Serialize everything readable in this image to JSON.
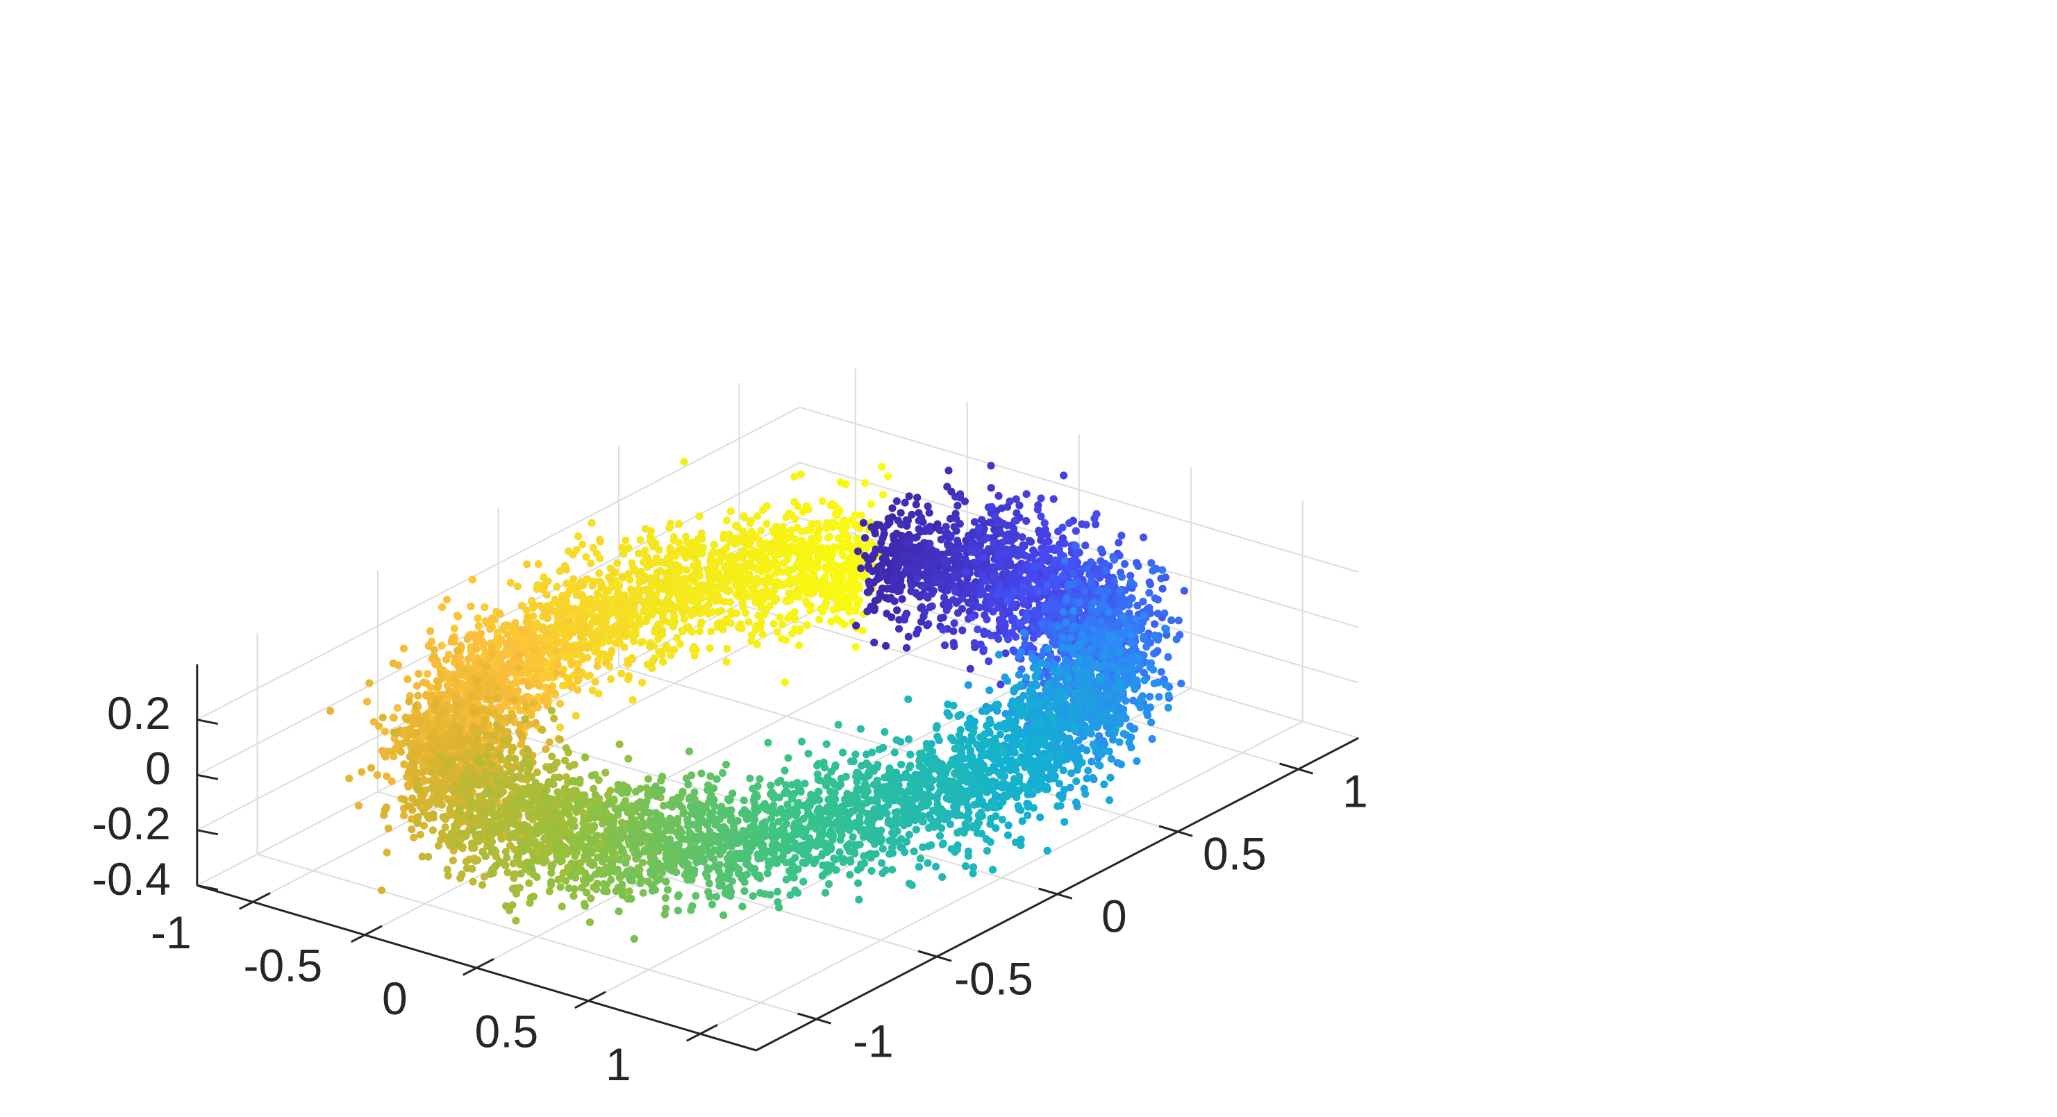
{
  "chart_data": {
    "type": "scatter",
    "projection": "3d",
    "title": "",
    "xlabel": "",
    "ylabel": "",
    "zlabel": "",
    "xlim": [
      -1.25,
      1.25
    ],
    "ylim": [
      -1.25,
      1.25
    ],
    "zlim": [
      -0.4,
      0.4
    ],
    "x_ticks": [
      -1,
      -0.5,
      0,
      0.5,
      1
    ],
    "y_ticks": [
      -1,
      -0.5,
      0,
      0.5,
      1
    ],
    "z_ticks": [
      -0.4,
      -0.2,
      0,
      0.2
    ],
    "x_tick_labels": [
      "-1",
      "-0.5",
      "0",
      "0.5",
      "1"
    ],
    "y_tick_labels": [
      "-1",
      "-0.5",
      "0",
      "0.5",
      "1"
    ],
    "z_tick_labels": [
      "-0.4",
      "-0.2",
      "0",
      "0.2"
    ],
    "grid": true,
    "legend": "none",
    "colormap": "parula",
    "colormap_stops": [
      "#3e26a8",
      "#4748f1",
      "#2e87f7",
      "#12b2d0",
      "#38c388",
      "#96c03c",
      "#dcb32f",
      "#fcbe3c",
      "#f4e51e",
      "#f9fb0e"
    ],
    "shape": "noisy ring (torus-like), color varies with angle around the ring",
    "ring_radius": 1.0,
    "radial_spread_sd": 0.1,
    "vertical_spread_sd": 0.1,
    "point_count": 8000
  }
}
